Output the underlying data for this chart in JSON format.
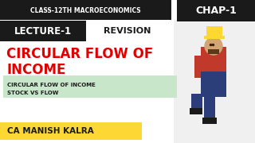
{
  "bg_color": "#ffffff",
  "top_bar_color": "#1a1a1a",
  "top_bar_text": "CLASS-12TH MACROECONOMICS",
  "top_bar_text_color": "#ffffff",
  "chap_box_color": "#1a1a1a",
  "chap_text": "CHAP-1",
  "chap_text_color": "#ffffff",
  "lecture_box_color": "#1a1a1a",
  "lecture_text": "LECTURE-1",
  "lecture_text_color": "#ffffff",
  "revision_text": "REVISION",
  "revision_text_color": "#1a1a1a",
  "main_title_line1": "CIRCULAR FLOW OF",
  "main_title_line2": "INCOME",
  "main_title_color": "#e00000",
  "subtitle_box_color": "#c8e6c9",
  "subtitle_line1": "CIRCULAR FLOW OF INCOME",
  "subtitle_line2": "STOCK VS FLOW",
  "subtitle_text_color": "#1a1a1a",
  "author_box_color": "#fdd835",
  "author_text": "CA MANISH KALRA",
  "author_text_color": "#1a1a1a",
  "person_skin": "#d4a574",
  "person_hat": "#fdd835",
  "person_shirt": "#c0392b",
  "person_jeans": "#2c3e7a"
}
